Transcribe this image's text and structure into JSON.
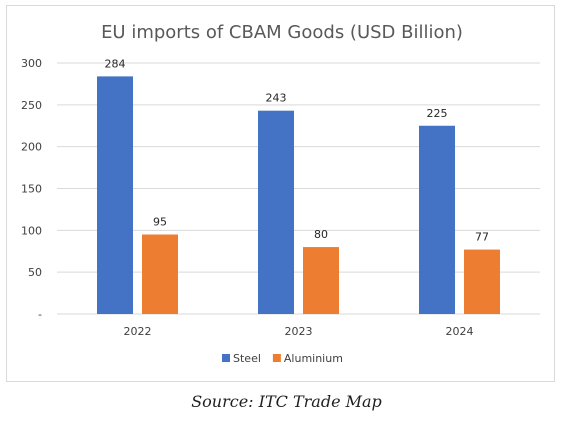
{
  "chart_data": {
    "type": "bar",
    "title": "EU imports of CBAM Goods (USD Billion)",
    "categories": [
      "2022",
      "2023",
      "2024"
    ],
    "series": [
      {
        "name": "Steel",
        "values": [
          284,
          243,
          225
        ],
        "color": "#4472c4"
      },
      {
        "name": "Aluminium",
        "values": [
          95,
          80,
          77
        ],
        "color": "#ed7d31"
      }
    ],
    "ylim": [
      0,
      300
    ],
    "yticks": [
      0,
      50,
      100,
      150,
      200,
      250,
      300
    ],
    "ytick_labels": [
      "-",
      "50",
      "100",
      "150",
      "200",
      "250",
      "300"
    ],
    "xlabel": "",
    "ylabel": "",
    "grid": true,
    "legend_position": "bottom"
  },
  "source": "Source: ITC Trade Map"
}
